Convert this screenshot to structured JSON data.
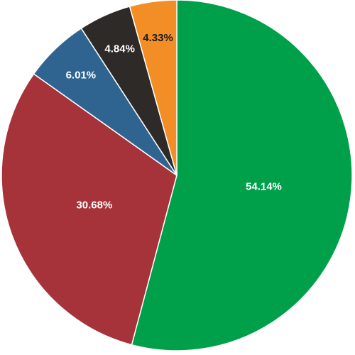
{
  "chart_data": {
    "type": "pie",
    "slices": [
      {
        "label": "54.14%",
        "value": 54.14,
        "color": "#00A04B",
        "label_color": "#ffffff"
      },
      {
        "label": "30.68%",
        "value": 30.68,
        "color": "#A6333A",
        "label_color": "#ffffff"
      },
      {
        "label": "6.01%",
        "value": 6.01,
        "color": "#2F6491",
        "label_color": "#ffffff"
      },
      {
        "label": "4.84%",
        "value": 4.84,
        "color": "#2E2A27",
        "label_color": "#ffffff"
      },
      {
        "label": "4.33%",
        "value": 4.33,
        "color": "#F28E25",
        "label_color": "#1a1a1a"
      }
    ],
    "start": "12 o'clock",
    "direction": "clockwise",
    "legend": "none"
  }
}
